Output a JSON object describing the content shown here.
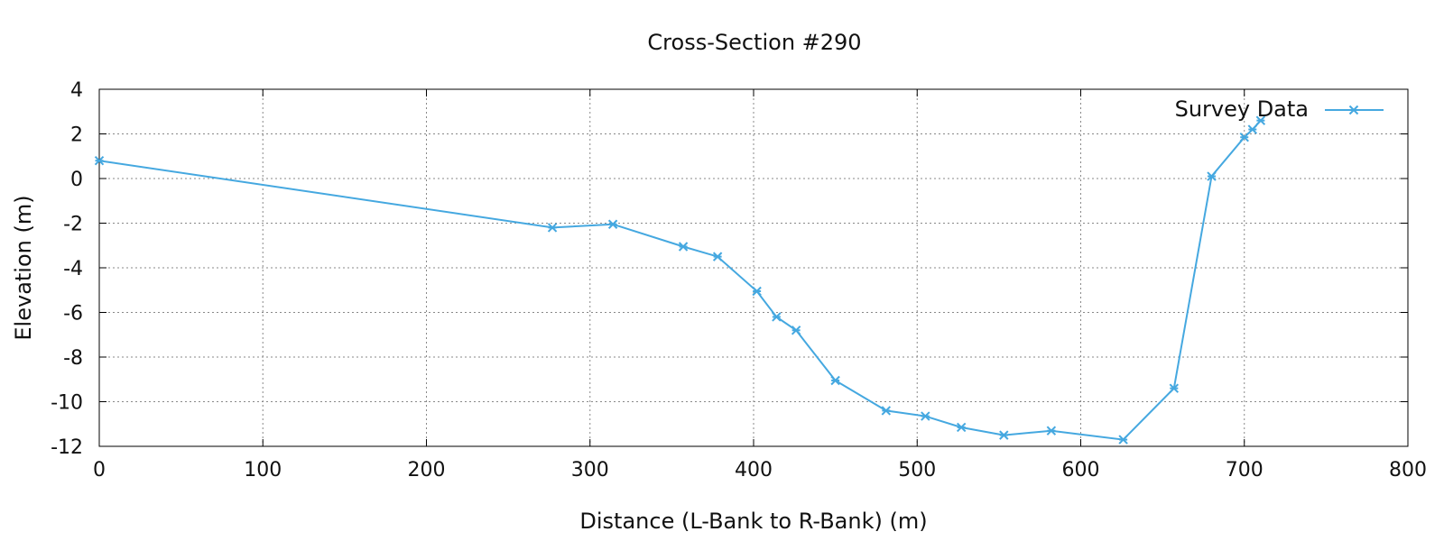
{
  "chart_data": {
    "type": "line",
    "title": "Cross-Section #290",
    "xlabel": "Distance (L-Bank to R-Bank) (m)",
    "ylabel": "Elevation (m)",
    "xlim": [
      0,
      800
    ],
    "ylim": [
      -12,
      4
    ],
    "xticks": [
      0,
      100,
      200,
      300,
      400,
      500,
      600,
      700,
      800
    ],
    "yticks": [
      -12,
      -10,
      -8,
      -6,
      -4,
      -2,
      0,
      2,
      4
    ],
    "grid": true,
    "legend": {
      "position": "top-right"
    },
    "series": [
      {
        "name": "Survey Data",
        "color": "#45a8e0",
        "marker": "asterisk",
        "x": [
          0,
          277,
          314,
          357,
          378,
          402,
          414,
          426,
          450,
          481,
          505,
          527,
          553,
          582,
          626,
          657,
          680,
          700,
          705,
          710
        ],
        "y": [
          0.8,
          -2.2,
          -2.05,
          -3.05,
          -3.5,
          -5.05,
          -6.2,
          -6.8,
          -9.05,
          -10.4,
          -10.65,
          -11.15,
          -11.5,
          -11.3,
          -11.7,
          -9.4,
          0.1,
          1.85,
          2.2,
          2.6
        ]
      }
    ]
  }
}
